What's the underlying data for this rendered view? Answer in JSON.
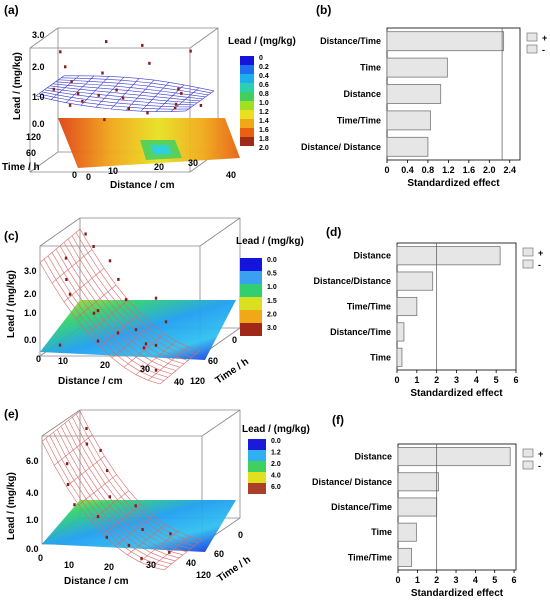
{
  "colors": {
    "bar_fill": "#e6e6e6",
    "bar_stroke": "#777777",
    "wire_a": "#3a3ad0",
    "wire_ce": "#d86a6a",
    "point": "#8b1a1a",
    "box": "#888888",
    "ref_line": "#555555",
    "legend_a": [
      "#1414dc",
      "#1e6ef0",
      "#1eaef0",
      "#2ad0b0",
      "#40d060",
      "#a0e020",
      "#e8e020",
      "#f0a818",
      "#e86010",
      "#9e2a18"
    ],
    "legend_c": [
      "#1414dc",
      "#3aa0f0",
      "#30d070",
      "#d8e020",
      "#f0a818",
      "#a02818"
    ],
    "legend_e": [
      "#1a1ad8",
      "#30b0f0",
      "#40d060",
      "#e0e020",
      "#a8402a"
    ],
    "surface_stops": [
      "#1414dc",
      "#1e8ef0",
      "#30d070",
      "#d8e020",
      "#f0a818",
      "#e05010"
    ]
  },
  "charts": [
    {
      "panel_label": "(a)",
      "type": "surface",
      "z_label": "Lead / (mg/kg)",
      "x_label": "Distance / cm",
      "y_label": "Time / h",
      "z_ticks": [
        "0.0",
        "1.0",
        "2.0",
        "3.0"
      ],
      "x_ticks": [
        "0",
        "10",
        "20",
        "30",
        "40"
      ],
      "y_ticks": [
        "0",
        "60",
        "120"
      ],
      "legend_title": "Lead / (mg/kg)",
      "legend_labels": [
        "0",
        "0.2",
        "0.4",
        "0.6",
        "0.8",
        "1.0",
        "1.2",
        "1.4",
        "1.6",
        "1.8",
        "2.0"
      ],
      "points": [
        [
          0.05,
          0.4,
          2.7
        ],
        [
          0.3,
          0.1,
          2.85
        ],
        [
          0.55,
          0.15,
          2.75
        ],
        [
          0.9,
          0.3,
          2.65
        ],
        [
          0.12,
          0.6,
          2.3
        ],
        [
          0.7,
          0.7,
          2.5
        ],
        [
          0.2,
          0.8,
          1.9
        ],
        [
          0.35,
          0.5,
          2.0
        ],
        [
          0.1,
          0.9,
          1.7
        ],
        [
          0.5,
          0.8,
          1.6
        ],
        [
          0.95,
          0.9,
          1.55
        ],
        [
          0.3,
          0.95,
          1.3
        ],
        [
          0.8,
          0.2,
          1.2
        ],
        [
          0.15,
          0.3,
          1.1
        ],
        [
          0.6,
          0.9,
          1.0
        ],
        [
          0.45,
          0.3,
          0.95
        ],
        [
          0.85,
          0.55,
          0.9
        ],
        [
          0.25,
          0.1,
          0.9
        ],
        [
          0.05,
          0.05,
          0.5
        ],
        [
          0.65,
          0.5,
          0.55
        ],
        [
          0.95,
          0.2,
          0.6
        ],
        [
          0.4,
          0.7,
          0.45
        ],
        [
          0.75,
          0.05,
          0.4
        ]
      ]
    },
    {
      "panel_label": "(b)",
      "type": "bar",
      "orientation": "horizontal",
      "categories": [
        "Distance/Time",
        "Time",
        "Distance",
        "Time/Time",
        "Distance/ Distance"
      ],
      "values": [
        2.28,
        1.18,
        1.05,
        0.85,
        0.8
      ],
      "xlim": [
        0,
        2.6
      ],
      "x_ticks": [
        "0",
        "0.4",
        "0.8",
        "1.2",
        "1.6",
        "2.0",
        "2.4"
      ],
      "ref_line": 2.25,
      "xlabel": "Standardized effect",
      "legend": [
        "+",
        "-"
      ]
    },
    {
      "panel_label": "(c)",
      "type": "surface",
      "z_label": "Lead / (mg/kg)",
      "x_label": "Distance / cm",
      "y_label": "Time / h",
      "z_ticks": [
        "0.0",
        "1.0",
        "2.0",
        "3.0"
      ],
      "x_ticks": [
        "0",
        "10",
        "20",
        "30",
        "40"
      ],
      "y_ticks": [
        "120",
        "60",
        "0"
      ],
      "legend_title": "Lead / (mg/kg)",
      "legend_labels": [
        "0.0",
        "0.5",
        "1.0",
        "1.5",
        "2.0",
        "3.0"
      ],
      "points": [
        [
          0.08,
          0.1,
          3.6
        ],
        [
          0.18,
          0.2,
          3.35
        ],
        [
          0.05,
          0.5,
          3.1
        ],
        [
          0.3,
          0.15,
          2.9
        ],
        [
          0.12,
          0.7,
          2.6
        ],
        [
          0.42,
          0.3,
          2.5
        ],
        [
          0.2,
          0.85,
          2.3
        ],
        [
          0.55,
          0.5,
          2.1
        ],
        [
          0.7,
          0.2,
          2.0
        ],
        [
          0.35,
          0.6,
          1.6
        ],
        [
          0.85,
          0.4,
          1.5
        ],
        [
          0.6,
          0.85,
          1.3
        ],
        [
          0.25,
          0.4,
          1.2
        ],
        [
          0.9,
          0.8,
          1.1
        ],
        [
          0.45,
          0.9,
          0.9
        ],
        [
          0.75,
          0.6,
          0.8
        ],
        [
          0.15,
          0.95,
          0.5
        ],
        [
          0.5,
          0.1,
          0.55
        ],
        [
          0.95,
          0.95,
          0.4
        ],
        [
          0.65,
          0.35,
          0.3
        ]
      ]
    },
    {
      "panel_label": "(d)",
      "type": "bar",
      "orientation": "horizontal",
      "categories": [
        "Distance",
        "Distance/Distance",
        "Time/Time",
        "Distance/Time",
        "Time"
      ],
      "values": [
        5.2,
        1.8,
        1.0,
        0.35,
        0.25
      ],
      "xlim": [
        0,
        6
      ],
      "x_ticks": [
        "0",
        "1",
        "2",
        "3",
        "4",
        "5",
        "6"
      ],
      "ref_line": 2.0,
      "xlabel": "Standardized effect",
      "legend": [
        "+",
        "-"
      ]
    },
    {
      "panel_label": "(e)",
      "type": "surface",
      "z_label": "Lead / (mg/kg)",
      "x_label": "Distance / cm",
      "y_label": "Time / h",
      "z_ticks": [
        "0.0",
        "1.0",
        "4.0",
        "6.0"
      ],
      "x_ticks": [
        "0",
        "10",
        "20",
        "30",
        "40"
      ],
      "y_ticks": [
        "120",
        "60",
        "0"
      ],
      "legend_title": "Lead / (mg/kg)",
      "legend_labels": [
        "0.0",
        "1.2",
        "2.0",
        "4.0",
        "6.0"
      ],
      "points": [
        [
          0.1,
          0.15,
          5.6
        ],
        [
          0.15,
          0.3,
          5.0
        ],
        [
          0.2,
          0.1,
          4.4
        ],
        [
          0.05,
          0.5,
          4.0
        ],
        [
          0.3,
          0.25,
          3.6
        ],
        [
          0.12,
          0.7,
          3.2
        ],
        [
          0.4,
          0.5,
          2.6
        ],
        [
          0.22,
          0.85,
          2.4
        ],
        [
          0.55,
          0.3,
          2.0
        ],
        [
          0.35,
          0.65,
          1.6
        ],
        [
          0.7,
          0.6,
          1.3
        ],
        [
          0.5,
          0.9,
          1.0
        ],
        [
          0.85,
          0.35,
          0.9
        ],
        [
          0.65,
          0.8,
          0.6
        ],
        [
          0.95,
          0.7,
          0.5
        ],
        [
          0.8,
          0.95,
          0.3
        ]
      ]
    },
    {
      "panel_label": "(f)",
      "type": "bar",
      "orientation": "horizontal",
      "categories": [
        "Distance",
        "Distance/ Distance",
        "Distance/Time",
        "Time",
        "Time/Time"
      ],
      "values": [
        5.8,
        2.1,
        2.0,
        0.95,
        0.7
      ],
      "xlim": [
        0,
        6.1
      ],
      "x_ticks": [
        "0",
        "1",
        "2",
        "3",
        "4",
        "5",
        "6"
      ],
      "ref_line": 2.0,
      "xlabel": "Standardized effect",
      "legend": [
        "+",
        "-"
      ]
    }
  ]
}
